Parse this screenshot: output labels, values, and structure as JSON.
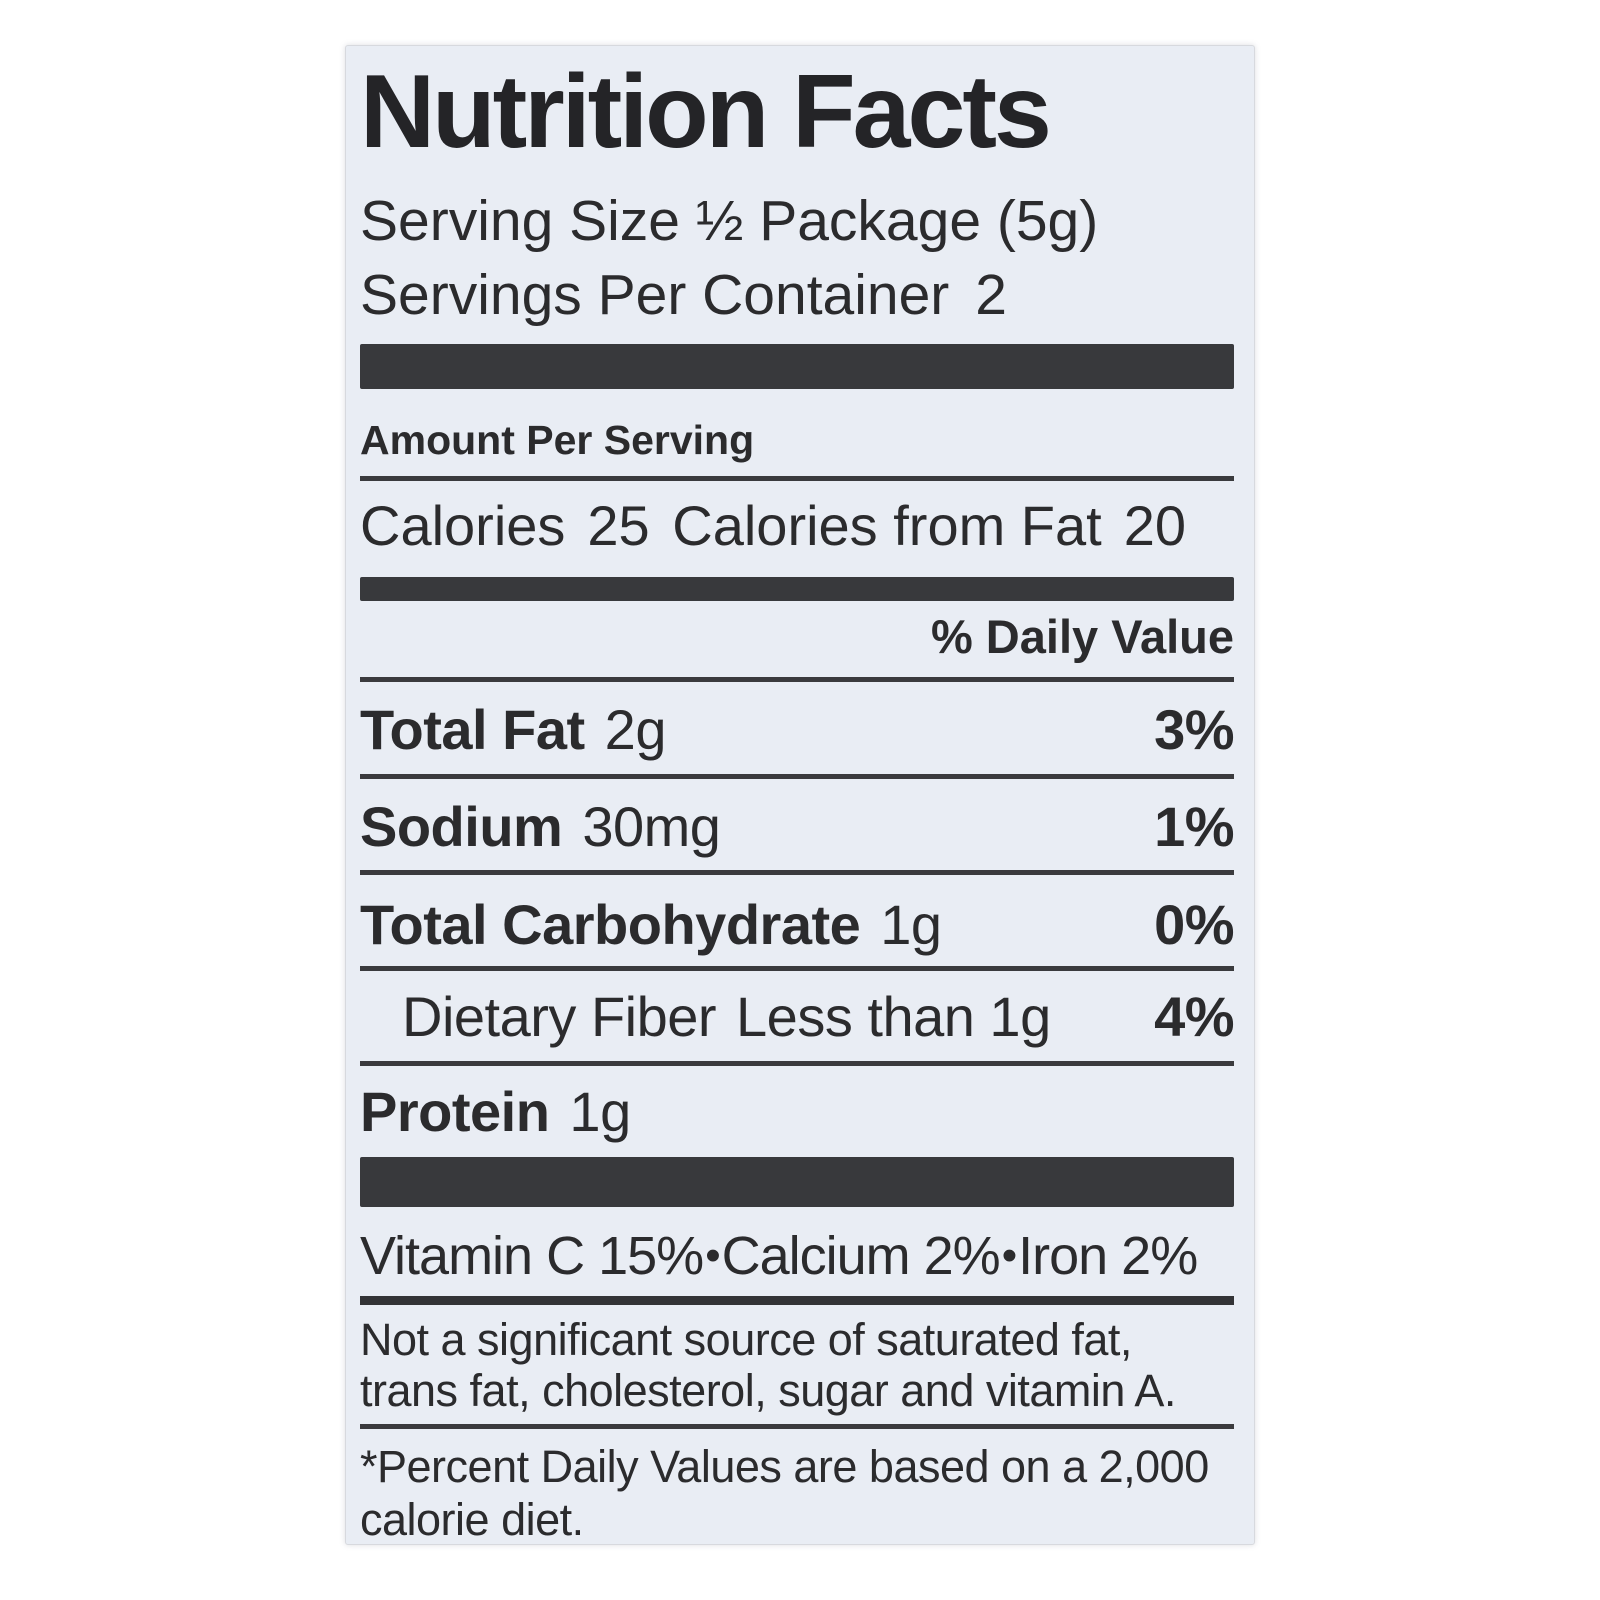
{
  "label": {
    "title": "Nutrition Facts",
    "serving_size": "Serving Size ½ Package (5g)",
    "servings_per_container_label": "Servings Per Container",
    "servings_per_container_value": "2",
    "amount_per_serving": "Amount Per Serving",
    "calories_label": "Calories",
    "calories_value": "25",
    "calories_from_fat_label": "Calories from Fat",
    "calories_from_fat_value": "20",
    "daily_value_header": "% Daily Value",
    "nutrients": [
      {
        "name": "Total Fat",
        "amount": "2g",
        "dv": "3%"
      },
      {
        "name": "Sodium",
        "amount": "30mg",
        "dv": "1%"
      },
      {
        "name": "Total Carbohydrate",
        "amount": "1g",
        "dv": "0%"
      },
      {
        "name": "Dietary Fiber",
        "amount": "Less than 1g",
        "dv": "4%"
      },
      {
        "name": "Protein",
        "amount": "1g",
        "dv": ""
      }
    ],
    "vitamins": [
      {
        "name": "Vitamin C",
        "value": "15%"
      },
      {
        "name": "Calcium",
        "value": "2%"
      },
      {
        "name": "Iron",
        "value": "2%"
      }
    ],
    "vitamin_separator": "•",
    "not_significant": "Not a significant source of saturated fat, trans fat, cholesterol, sugar and vitamin A.",
    "footnote": "*Percent Daily Values are based on a 2,000 calorie diet.",
    "colors": {
      "label_background": "#e9edf4",
      "text": "#2b2b2d",
      "bar": "#38393c",
      "page_background": "#ffffff"
    }
  }
}
